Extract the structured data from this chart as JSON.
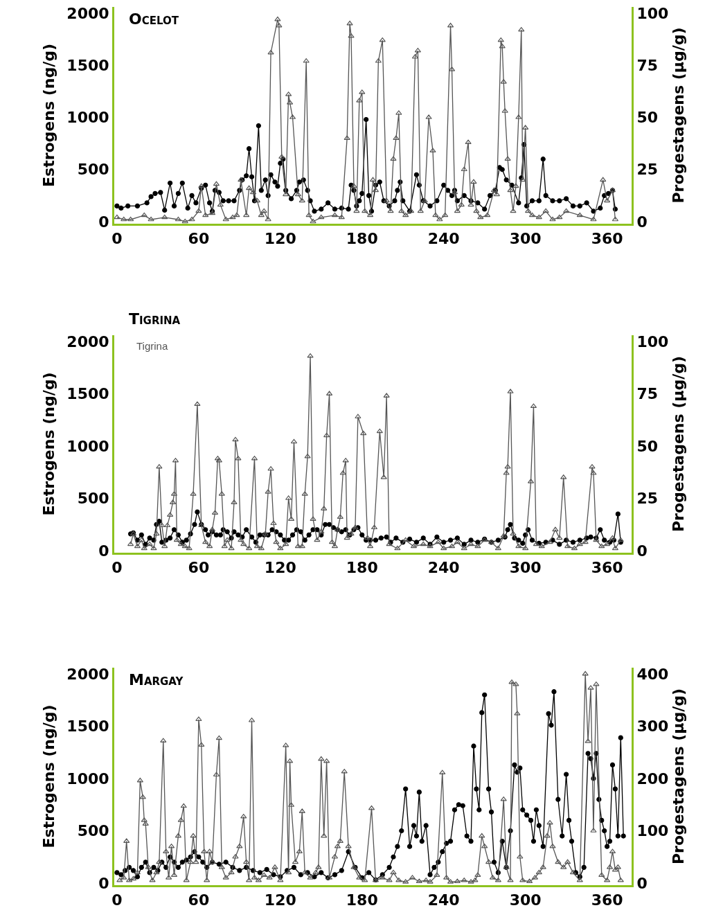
{
  "chart_data": [
    {
      "type": "line",
      "title": "Ocelot",
      "ylabel": "Estrogens (ng/g)",
      "y2label": "Progestagens (μg/g)",
      "xlim": [
        -2,
        378
      ],
      "xticks": [
        0,
        60,
        120,
        180,
        240,
        300,
        360
      ],
      "ylim": [
        -20,
        2060
      ],
      "yticks": [
        0,
        500,
        1000,
        1500,
        2000
      ],
      "y2lim": [
        -1,
        103
      ],
      "y2ticks": [
        0,
        25,
        50,
        75,
        100
      ],
      "series": [
        {
          "color": "#000000",
          "marker": "circle",
          "axis": "y",
          "x": [
            0,
            3,
            8,
            15,
            22,
            25,
            28,
            32,
            35,
            39,
            42,
            45,
            48,
            52,
            55,
            58,
            62,
            65,
            68,
            70,
            72,
            75,
            78,
            82,
            86,
            90,
            92,
            95,
            97,
            99,
            101,
            104,
            106,
            109,
            111,
            113,
            116,
            118,
            120,
            122,
            124,
            128,
            132,
            134,
            137,
            140,
            142,
            145,
            150,
            155,
            160,
            165,
            170,
            172,
            174,
            176,
            178,
            180,
            183,
            185,
            187,
            190,
            193,
            196,
            200,
            204,
            206,
            208,
            210,
            215,
            220,
            222,
            225,
            230,
            235,
            240,
            243,
            246,
            248,
            250,
            255,
            260,
            265,
            270,
            274,
            278,
            281,
            283,
            286,
            290,
            295,
            297,
            299,
            301,
            305,
            310,
            313,
            315,
            320,
            325,
            330,
            335,
            340,
            345,
            350,
            355,
            358,
            361,
            364,
            366
          ],
          "values": [
            150,
            130,
            150,
            150,
            180,
            240,
            270,
            280,
            110,
            370,
            150,
            270,
            370,
            130,
            250,
            180,
            320,
            350,
            180,
            100,
            300,
            280,
            200,
            200,
            200,
            300,
            400,
            440,
            700,
            430,
            200,
            920,
            300,
            400,
            250,
            450,
            380,
            340,
            560,
            600,
            300,
            220,
            300,
            380,
            400,
            300,
            200,
            100,
            120,
            180,
            120,
            130,
            120,
            350,
            300,
            150,
            200,
            270,
            980,
            250,
            100,
            350,
            380,
            200,
            150,
            200,
            300,
            380,
            200,
            100,
            450,
            350,
            200,
            150,
            200,
            350,
            300,
            250,
            300,
            200,
            250,
            200,
            180,
            120,
            250,
            300,
            520,
            500,
            400,
            350,
            180,
            420,
            740,
            150,
            200,
            200,
            600,
            250,
            200,
            200,
            220,
            150,
            150,
            180,
            100,
            130,
            250,
            270,
            300,
            120
          ]
        },
        {
          "color": "#555555",
          "marker": "triangle",
          "axis": "y2",
          "x": [
            0,
            5,
            10,
            20,
            25,
            35,
            45,
            50,
            55,
            60,
            62,
            65,
            70,
            73,
            76,
            80,
            85,
            88,
            91,
            95,
            97,
            100,
            103,
            106,
            108,
            111,
            113,
            118,
            119,
            121,
            124,
            126,
            127,
            129,
            133,
            136,
            139,
            141,
            144,
            150,
            160,
            165,
            169,
            171,
            172,
            174,
            176,
            178,
            180,
            182,
            186,
            188,
            190,
            192,
            195,
            198,
            201,
            203,
            205,
            207,
            209,
            212,
            216,
            219,
            221,
            223,
            226,
            229,
            232,
            234,
            237,
            241,
            245,
            246,
            248,
            250,
            253,
            255,
            258,
            260,
            262,
            264,
            267,
            272,
            277,
            279,
            282,
            283,
            284,
            285,
            287,
            289,
            291,
            293,
            295,
            297,
            298,
            300,
            302,
            305,
            310,
            315,
            320,
            325,
            330,
            340,
            350,
            357,
            360,
            364,
            366
          ],
          "values": [
            2,
            1,
            1,
            3,
            1,
            2,
            1,
            0,
            1,
            5,
            17,
            3,
            4,
            18,
            8,
            1,
            2,
            3,
            20,
            3,
            16,
            14,
            10,
            3,
            5,
            1,
            81,
            97,
            94,
            31,
            13,
            61,
            57,
            50,
            13,
            10,
            77,
            3,
            0,
            2,
            3,
            2,
            40,
            95,
            89,
            17,
            5,
            58,
            62,
            5,
            3,
            20,
            15,
            77,
            87,
            10,
            5,
            30,
            40,
            52,
            5,
            3,
            5,
            79,
            82,
            5,
            10,
            50,
            34,
            3,
            1,
            3,
            94,
            73,
            14,
            5,
            8,
            25,
            38,
            8,
            19,
            5,
            2,
            3,
            15,
            13,
            87,
            84,
            67,
            53,
            30,
            15,
            5,
            17,
            50,
            92,
            20,
            45,
            5,
            3,
            2,
            5,
            1,
            2,
            5,
            3,
            1,
            20,
            10,
            15,
            1
          ]
        }
      ]
    },
    {
      "type": "line",
      "title": "Tigrina",
      "ylabel": "Estrogens (ng/g)",
      "y2label": "Progestagens (μg/g)",
      "xlim": [
        -2,
        378
      ],
      "xticks": [
        0,
        60,
        120,
        180,
        240,
        300,
        360
      ],
      "ylim": [
        -20,
        2060
      ],
      "yticks": [
        0,
        500,
        1000,
        1500,
        2000
      ],
      "y2lim": [
        -1,
        103
      ],
      "y2ticks": [
        0,
        25,
        50,
        75,
        100
      ],
      "annotations": [
        "Tigrina"
      ],
      "series": [
        {
          "color": "#000000",
          "marker": "circle",
          "axis": "y",
          "x": [
            10,
            12,
            15,
            18,
            21,
            24,
            27,
            29,
            31,
            33,
            36,
            39,
            42,
            45,
            48,
            51,
            54,
            57,
            59,
            62,
            65,
            67,
            70,
            73,
            76,
            78,
            81,
            84,
            86,
            89,
            92,
            95,
            99,
            102,
            105,
            108,
            111,
            114,
            117,
            120,
            123,
            126,
            129,
            132,
            135,
            138,
            141,
            144,
            147,
            150,
            153,
            156,
            159,
            162,
            165,
            168,
            171,
            174,
            177,
            180,
            183,
            186,
            190,
            194,
            198,
            201,
            205,
            210,
            215,
            220,
            225,
            230,
            235,
            240,
            245,
            250,
            255,
            260,
            265,
            270,
            275,
            280,
            285,
            287,
            289,
            292,
            295,
            298,
            300,
            302,
            305,
            310,
            315,
            320,
            325,
            330,
            335,
            340,
            345,
            348,
            352,
            355,
            358,
            362,
            365,
            368,
            370
          ],
          "values": [
            160,
            170,
            100,
            150,
            60,
            120,
            100,
            250,
            280,
            80,
            100,
            120,
            200,
            150,
            80,
            100,
            160,
            250,
            370,
            250,
            200,
            150,
            180,
            150,
            150,
            200,
            180,
            120,
            180,
            150,
            130,
            200,
            130,
            80,
            150,
            150,
            150,
            200,
            180,
            150,
            100,
            100,
            150,
            200,
            180,
            100,
            150,
            200,
            200,
            150,
            250,
            250,
            220,
            200,
            180,
            200,
            150,
            200,
            220,
            150,
            100,
            100,
            100,
            120,
            130,
            80,
            120,
            80,
            110,
            80,
            120,
            60,
            130,
            80,
            100,
            120,
            60,
            100,
            80,
            110,
            80,
            100,
            130,
            200,
            250,
            120,
            100,
            70,
            150,
            200,
            100,
            70,
            80,
            100,
            60,
            100,
            80,
            100,
            120,
            130,
            120,
            200,
            100,
            80,
            100,
            350,
            80
          ]
        },
        {
          "color": "#555555",
          "marker": "triangle",
          "axis": "y2",
          "x": [
            10,
            12,
            15,
            18,
            20,
            24,
            27,
            29,
            31,
            33,
            35,
            37,
            39,
            41,
            42,
            43,
            44,
            47,
            50,
            53,
            56,
            59,
            62,
            65,
            68,
            70,
            72,
            74,
            75,
            77,
            79,
            81,
            84,
            86,
            87,
            89,
            91,
            93,
            97,
            101,
            103,
            106,
            109,
            111,
            113,
            115,
            117,
            120,
            124,
            126,
            128,
            130,
            133,
            136,
            138,
            140,
            142,
            144,
            147,
            150,
            152,
            154,
            156,
            158,
            160,
            162,
            164,
            166,
            168,
            169,
            172,
            175,
            177,
            181,
            184,
            186,
            189,
            193,
            196,
            198,
            200,
            206,
            212,
            218,
            225,
            230,
            236,
            240,
            246,
            250,
            255,
            260,
            265,
            270,
            275,
            280,
            284,
            286,
            287,
            289,
            291,
            295,
            300,
            304,
            306,
            308,
            312,
            318,
            322,
            325,
            328,
            331,
            336,
            340,
            344,
            349,
            350,
            352,
            356,
            360,
            364,
            366,
            370
          ],
          "values": [
            3,
            8,
            2,
            5,
            1,
            3,
            1,
            8,
            40,
            12,
            2,
            12,
            17,
            23,
            27,
            43,
            5,
            3,
            2,
            1,
            27,
            70,
            12,
            4,
            2,
            10,
            18,
            44,
            43,
            27,
            2,
            5,
            1,
            23,
            53,
            44,
            5,
            3,
            1,
            44,
            2,
            1,
            8,
            28,
            39,
            13,
            4,
            1,
            3,
            25,
            15,
            52,
            2,
            2,
            27,
            45,
            93,
            15,
            5,
            9,
            20,
            55,
            75,
            4,
            2,
            10,
            16,
            37,
            43,
            6,
            8,
            11,
            64,
            56,
            6,
            2,
            11,
            57,
            35,
            74,
            3,
            1,
            5,
            2,
            3,
            2,
            4,
            1,
            2,
            4,
            1,
            3,
            2,
            5,
            4,
            1,
            7,
            37,
            40,
            76,
            8,
            2,
            1,
            33,
            69,
            3,
            2,
            4,
            10,
            6,
            35,
            2,
            1,
            3,
            4,
            40,
            37,
            5,
            2,
            3,
            6,
            1,
            5
          ]
        }
      ]
    },
    {
      "type": "line",
      "title": "Margay",
      "ylabel": "Estrogens (ng/g)",
      "y2label": "Progestagens (μg/g)",
      "xlim": [
        -2,
        378
      ],
      "xticks": [
        0,
        60,
        120,
        180,
        240,
        300,
        360
      ],
      "ylim": [
        -20,
        2060
      ],
      "yticks": [
        0,
        500,
        1000,
        1500,
        2000
      ],
      "y2lim": [
        -4,
        412
      ],
      "y2ticks": [
        0,
        100,
        200,
        300,
        400
      ],
      "series": [
        {
          "color": "#000000",
          "marker": "circle",
          "axis": "y",
          "x": [
            0,
            3,
            6,
            9,
            12,
            15,
            18,
            21,
            24,
            27,
            30,
            33,
            36,
            39,
            42,
            45,
            48,
            51,
            54,
            57,
            60,
            63,
            66,
            70,
            75,
            80,
            85,
            90,
            95,
            100,
            105,
            110,
            115,
            120,
            125,
            130,
            135,
            140,
            145,
            150,
            155,
            160,
            165,
            170,
            175,
            180,
            185,
            190,
            195,
            200,
            203,
            206,
            209,
            212,
            215,
            218,
            220,
            222,
            224,
            227,
            230,
            233,
            236,
            239,
            242,
            245,
            248,
            251,
            254,
            257,
            260,
            262,
            264,
            266,
            268,
            270,
            273,
            275,
            277,
            280,
            283,
            286,
            289,
            292,
            294,
            296,
            298,
            301,
            304,
            306,
            308,
            310,
            313,
            317,
            319,
            321,
            324,
            327,
            330,
            332,
            334,
            337,
            340,
            343,
            346,
            348,
            350,
            352,
            354,
            356,
            358,
            360,
            362,
            364,
            366,
            368,
            370,
            372
          ],
          "values": [
            100,
            80,
            120,
            150,
            120,
            60,
            150,
            200,
            100,
            150,
            120,
            200,
            150,
            250,
            200,
            150,
            200,
            220,
            250,
            300,
            250,
            200,
            150,
            200,
            180,
            200,
            150,
            120,
            150,
            120,
            100,
            130,
            80,
            60,
            120,
            150,
            80,
            100,
            60,
            100,
            50,
            80,
            120,
            300,
            150,
            50,
            100,
            30,
            80,
            150,
            250,
            350,
            500,
            900,
            350,
            550,
            450,
            870,
            400,
            550,
            80,
            150,
            200,
            300,
            380,
            400,
            700,
            750,
            740,
            450,
            400,
            1310,
            900,
            700,
            1630,
            1800,
            900,
            680,
            200,
            100,
            400,
            150,
            500,
            1130,
            1060,
            1100,
            700,
            650,
            600,
            400,
            700,
            550,
            350,
            1620,
            1510,
            1830,
            800,
            450,
            1040,
            600,
            400,
            100,
            60,
            150,
            1240,
            1190,
            1000,
            1240,
            800,
            600,
            500,
            350,
            400,
            1130,
            900,
            450,
            1390,
            450
          ]
        },
        {
          "color": "#555555",
          "marker": "triangle",
          "axis": "y2",
          "x": [
            2,
            5,
            7,
            9,
            12,
            15,
            17,
            19,
            20,
            21,
            23,
            26,
            29,
            31,
            34,
            36,
            38,
            40,
            42,
            45,
            47,
            49,
            51,
            54,
            56,
            58,
            60,
            62,
            64,
            66,
            68,
            70,
            73,
            75,
            77,
            80,
            84,
            87,
            90,
            93,
            95,
            97,
            99,
            101,
            104,
            108,
            112,
            116,
            120,
            124,
            126,
            127,
            128,
            131,
            134,
            136,
            138,
            142,
            146,
            148,
            150,
            152,
            154,
            156,
            160,
            162,
            164,
            167,
            170,
            174,
            178,
            182,
            187,
            190,
            195,
            200,
            203,
            207,
            212,
            217,
            222,
            227,
            230,
            235,
            239,
            242,
            245,
            250,
            255,
            260,
            263,
            265,
            268,
            270,
            273,
            276,
            280,
            284,
            286,
            289,
            290,
            293,
            294,
            296,
            298,
            303,
            307,
            310,
            313,
            316,
            318,
            320,
            324,
            328,
            331,
            335,
            340,
            344,
            346,
            348,
            350,
            352,
            356,
            360,
            362,
            364,
            366,
            368,
            370
          ],
          "values": [
            5,
            10,
            80,
            5,
            8,
            20,
            196,
            164,
            120,
            113,
            30,
            5,
            20,
            40,
            272,
            60,
            10,
            70,
            15,
            90,
            120,
            147,
            5,
            40,
            90,
            40,
            313,
            264,
            60,
            5,
            60,
            40,
            207,
            277,
            30,
            10,
            20,
            50,
            70,
            127,
            40,
            5,
            311,
            10,
            5,
            15,
            10,
            30,
            5,
            263,
            20,
            233,
            149,
            40,
            60,
            137,
            20,
            10,
            20,
            30,
            237,
            90,
            233,
            10,
            50,
            70,
            80,
            213,
            70,
            30,
            10,
            5,
            143,
            5,
            10,
            5,
            20,
            5,
            2,
            10,
            3,
            5,
            2,
            15,
            211,
            10,
            2,
            3,
            5,
            2,
            5,
            15,
            90,
            70,
            40,
            10,
            5,
            160,
            30,
            5,
            384,
            380,
            324,
            50,
            5,
            3,
            10,
            20,
            30,
            90,
            115,
            70,
            40,
            30,
            40,
            20,
            5,
            400,
            271,
            373,
            100,
            380,
            15,
            5,
            30,
            60,
            25,
            30,
            5
          ]
        }
      ]
    }
  ]
}
